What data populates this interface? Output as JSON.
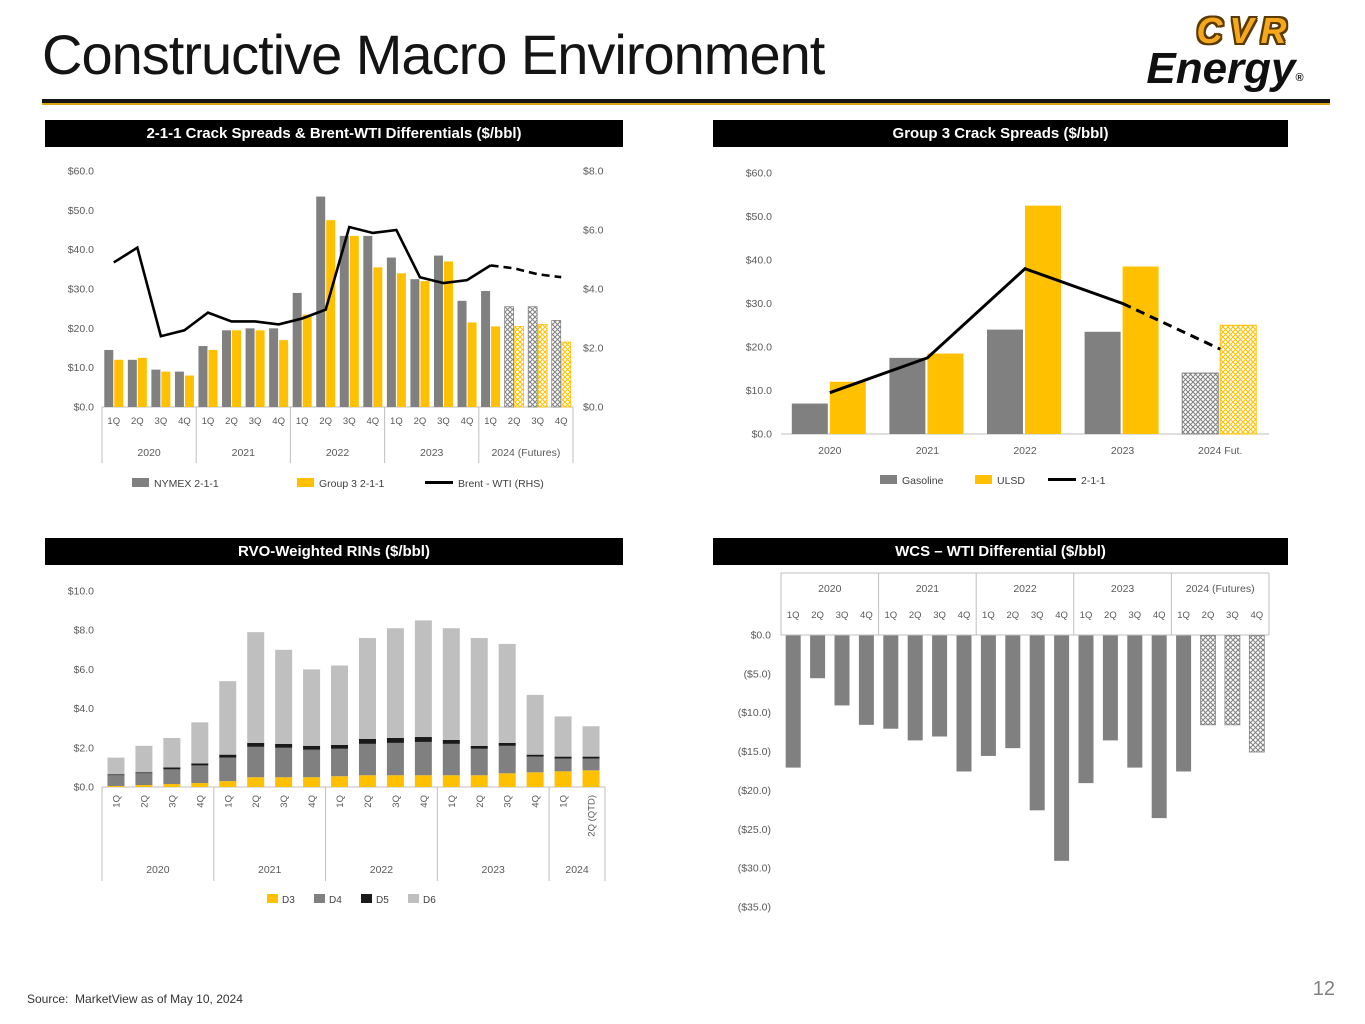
{
  "slide": {
    "title": "Constructive Macro Environment",
    "source": "Source:  MarketView as of May 10, 2024",
    "page_number": "12"
  },
  "logo": {
    "line1": "CVR",
    "line2": "Energy",
    "reg": "®"
  },
  "colors": {
    "gray": "#808080",
    "gold": "#FFC000",
    "light_gray": "#BFBFBF",
    "dark": "#1A1A1A",
    "black": "#000000",
    "axis_text": "#595959",
    "grid": "#BFBFBF",
    "header_bg": "#000000",
    "header_text": "#FFFFFF"
  },
  "chart_data": [
    {
      "id": "crack-spreads",
      "type": "bar",
      "title": "2-1-1 Crack Spreads & Brent-WTI Differentials ($/bbl)",
      "group_labels": [
        "2020",
        "2021",
        "2022",
        "2023",
        "2024 (Futures)"
      ],
      "group_sizes": [
        4,
        4,
        4,
        4,
        4
      ],
      "quarter_labels": [
        "1Q",
        "2Q",
        "3Q",
        "4Q",
        "1Q",
        "2Q",
        "3Q",
        "4Q",
        "1Q",
        "2Q",
        "3Q",
        "4Q",
        "1Q",
        "2Q",
        "3Q",
        "4Q",
        "1Q",
        "2Q",
        "3Q",
        "4Q"
      ],
      "left_axis": {
        "min": 0,
        "max": 60,
        "step": 10,
        "tick_labels": [
          "$0.0",
          "$10.0",
          "$20.0",
          "$30.0",
          "$40.0",
          "$50.0",
          "$60.0"
        ]
      },
      "right_axis": {
        "min": 0,
        "max": 8,
        "step": 2,
        "tick_labels": [
          "$0.0",
          "$2.0",
          "$4.0",
          "$6.0",
          "$8.0"
        ]
      },
      "hatched_from_index": 17,
      "series": [
        {
          "name": "NYMEX 2-1-1",
          "kind": "bar",
          "color_key": "gray",
          "values": [
            14.5,
            12.0,
            9.5,
            9.0,
            15.5,
            19.5,
            20.0,
            20.0,
            29.0,
            53.5,
            43.5,
            43.5,
            38.0,
            32.5,
            38.5,
            27.0,
            29.5,
            25.5,
            25.5,
            22.0
          ]
        },
        {
          "name": "Group 3 2-1-1",
          "kind": "bar",
          "color_key": "gold",
          "values": [
            12.0,
            12.5,
            9.0,
            8.0,
            14.5,
            19.5,
            19.5,
            17.0,
            23.5,
            47.5,
            43.5,
            35.5,
            34.0,
            32.0,
            37.0,
            21.5,
            20.5,
            20.5,
            21.0,
            16.5
          ]
        },
        {
          "name": "Brent - WTI (RHS)",
          "kind": "line",
          "axis": "right",
          "color_key": "black",
          "dashed_from_index": 16,
          "values": [
            4.9,
            5.4,
            2.4,
            2.6,
            3.2,
            2.9,
            2.9,
            2.8,
            3.0,
            3.3,
            6.1,
            5.9,
            6.0,
            4.4,
            4.2,
            4.3,
            4.8,
            4.7,
            4.5,
            4.4
          ]
        }
      ]
    },
    {
      "id": "group3-crack-spreads",
      "type": "bar",
      "title": "Group 3 Crack Spreads ($/bbl)",
      "group_labels": [
        "2020",
        "2021",
        "2022",
        "2023",
        "2024 Fut."
      ],
      "left_axis": {
        "min": 0,
        "max": 60,
        "step": 10,
        "tick_labels": [
          "$0.0",
          "$10.0",
          "$20.0",
          "$30.0",
          "$40.0",
          "$50.0",
          "$60.0"
        ]
      },
      "hatched_groups": [
        4
      ],
      "series": [
        {
          "name": "Gasoline",
          "kind": "bar",
          "color_key": "gray",
          "values": [
            7.0,
            17.5,
            24.0,
            23.5,
            14.0
          ]
        },
        {
          "name": "ULSD",
          "kind": "bar",
          "color_key": "gold",
          "values": [
            12.0,
            18.5,
            52.5,
            38.5,
            25.0
          ]
        },
        {
          "name": "2-1-1",
          "kind": "line",
          "color_key": "black",
          "dashed_from_index": 3,
          "values": [
            9.5,
            17.5,
            38.0,
            30.0,
            19.5
          ]
        }
      ]
    },
    {
      "id": "rvo-weighted-rins",
      "type": "stacked-bar",
      "title": "RVO-Weighted RINs ($/bbl)",
      "group_labels": [
        "2020",
        "2021",
        "2022",
        "2023",
        "2024"
      ],
      "group_sizes": [
        4,
        4,
        4,
        4,
        2
      ],
      "quarter_labels": [
        "1Q",
        "2Q",
        "3Q",
        "4Q",
        "1Q",
        "2Q",
        "3Q",
        "4Q",
        "1Q",
        "2Q",
        "3Q",
        "4Q",
        "1Q",
        "2Q",
        "3Q",
        "4Q",
        "1Q",
        "2Q (QTD)"
      ],
      "left_axis": {
        "min": 0,
        "max": 10,
        "step": 2,
        "tick_labels": [
          "$0.0",
          "$2.0",
          "$4.0",
          "$6.0",
          "$8.0",
          "$10.0"
        ]
      },
      "series": [
        {
          "name": "D3",
          "color_key": "gold",
          "values": [
            0.05,
            0.1,
            0.15,
            0.2,
            0.3,
            0.5,
            0.5,
            0.5,
            0.55,
            0.6,
            0.6,
            0.6,
            0.6,
            0.6,
            0.7,
            0.75,
            0.8,
            0.85
          ]
        },
        {
          "name": "D4",
          "color_key": "gray",
          "values": [
            0.55,
            0.6,
            0.75,
            0.9,
            1.2,
            1.55,
            1.5,
            1.4,
            1.4,
            1.6,
            1.65,
            1.7,
            1.6,
            1.35,
            1.4,
            0.8,
            0.65,
            0.6
          ]
        },
        {
          "name": "D5",
          "color_key": "dark",
          "values": [
            0.05,
            0.05,
            0.1,
            0.1,
            0.15,
            0.2,
            0.2,
            0.2,
            0.2,
            0.25,
            0.25,
            0.25,
            0.2,
            0.15,
            0.15,
            0.1,
            0.1,
            0.1
          ]
        },
        {
          "name": "D6",
          "color_key": "light_gray",
          "values": [
            0.85,
            1.35,
            1.5,
            2.1,
            3.75,
            5.65,
            4.8,
            3.9,
            4.05,
            5.15,
            5.6,
            5.95,
            5.7,
            5.5,
            5.05,
            3.05,
            2.05,
            1.55
          ]
        }
      ]
    },
    {
      "id": "wcs-wti-differential",
      "type": "bar",
      "title": "WCS – WTI Differential ($/bbl)",
      "group_labels": [
        "2020",
        "2021",
        "2022",
        "2023",
        "2024 (Futures)"
      ],
      "group_sizes": [
        4,
        4,
        4,
        4,
        4
      ],
      "quarter_labels": [
        "1Q",
        "2Q",
        "3Q",
        "4Q",
        "1Q",
        "2Q",
        "3Q",
        "4Q",
        "1Q",
        "2Q",
        "3Q",
        "4Q",
        "1Q",
        "2Q",
        "3Q",
        "4Q",
        "1Q",
        "2Q",
        "3Q",
        "4Q"
      ],
      "left_axis": {
        "min": -35,
        "max": 0,
        "step": 5,
        "tick_labels": [
          "$0.0",
          "($5.0)",
          "($10.0)",
          "($15.0)",
          "($20.0)",
          "($25.0)",
          "($30.0)",
          "($35.0)"
        ]
      },
      "hatched_from_index": 17,
      "series": [
        {
          "name": "WCS - WTI",
          "kind": "bar",
          "color_key": "gray",
          "values": [
            -17.0,
            -5.5,
            -9.0,
            -11.5,
            -12.0,
            -13.5,
            -13.0,
            -17.5,
            -15.5,
            -14.5,
            -22.5,
            -29.0,
            -19.0,
            -13.5,
            -17.0,
            -23.5,
            -17.5,
            -11.5,
            -11.5,
            -15.0
          ]
        }
      ]
    }
  ]
}
